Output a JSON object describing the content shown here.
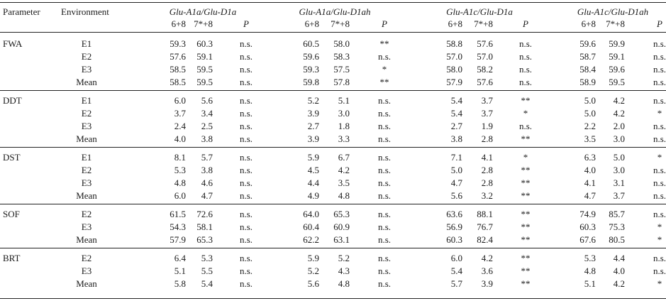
{
  "header": {
    "parameter": "Parameter",
    "environment": "Environment",
    "groups": [
      "Glu-A1a/Glu-D1a",
      "Glu-A1a/Glu-D1ah",
      "Glu-A1c/Glu-D1a",
      "Glu-A1c/Glu-D1ah"
    ],
    "sub": [
      "6+8",
      "7*+8",
      "P"
    ]
  },
  "sections": [
    {
      "param": "FWA",
      "rows": [
        {
          "env": "E1",
          "vals": [
            "59.3",
            "60.3",
            "n.s.",
            "60.5",
            "58.0",
            "**",
            "58.8",
            "57.6",
            "n.s.",
            "59.6",
            "59.9",
            "n.s."
          ]
        },
        {
          "env": "E2",
          "vals": [
            "57.6",
            "59.1",
            "n.s.",
            "59.6",
            "58.3",
            "n.s.",
            "57.0",
            "57.0",
            "n.s.",
            "58.7",
            "59.1",
            "n.s."
          ]
        },
        {
          "env": "E3",
          "vals": [
            "58.5",
            "59.5",
            "n.s.",
            "59.3",
            "57.5",
            "*",
            "58.0",
            "58.2",
            "n.s.",
            "58.4",
            "59.6",
            "n.s."
          ]
        },
        {
          "env": "Mean",
          "vals": [
            "58.5",
            "59.5",
            "n.s.",
            "59.8",
            "57.8",
            "**",
            "57.9",
            "57.6",
            "n.s.",
            "58.9",
            "59.5",
            "n.s."
          ]
        }
      ]
    },
    {
      "param": "DDT",
      "rows": [
        {
          "env": "E1",
          "vals": [
            "6.0",
            "5.6",
            "n.s.",
            "5.2",
            "5.1",
            "n.s.",
            "5.4",
            "3.7",
            "**",
            "5.0",
            "4.2",
            "n.s."
          ]
        },
        {
          "env": "E2",
          "vals": [
            "3.7",
            "3.4",
            "n.s.",
            "3.9",
            "3.0",
            "n.s.",
            "5.4",
            "3.7",
            "*",
            "5.0",
            "4.2",
            "*"
          ]
        },
        {
          "env": "E3",
          "vals": [
            "2.4",
            "2.5",
            "n.s.",
            "2.7",
            "1.8",
            "n.s.",
            "2.7",
            "1.9",
            "n.s.",
            "2.2",
            "2.0",
            "n.s."
          ]
        },
        {
          "env": "Mean",
          "vals": [
            "4.0",
            "3.8",
            "n.s.",
            "3.9",
            "3.3",
            "n.s.",
            "3.8",
            "2.8",
            "**",
            "3.5",
            "3.0",
            "n.s."
          ]
        }
      ]
    },
    {
      "param": "DST",
      "rows": [
        {
          "env": "E1",
          "vals": [
            "8.1",
            "5.7",
            "n.s.",
            "5.9",
            "6.7",
            "n.s.",
            "7.1",
            "4.1",
            "*",
            "6.3",
            "5.0",
            "*"
          ]
        },
        {
          "env": "E2",
          "vals": [
            "5.3",
            "3.8",
            "n.s.",
            "4.5",
            "4.2",
            "n.s.",
            "5.0",
            "2.8",
            "**",
            "4.0",
            "3.0",
            "n.s."
          ]
        },
        {
          "env": "E3",
          "vals": [
            "4.8",
            "4.6",
            "n.s.",
            "4.4",
            "3.5",
            "n.s.",
            "4.7",
            "2.8",
            "**",
            "4.1",
            "3.1",
            "n.s."
          ]
        },
        {
          "env": "Mean",
          "vals": [
            "6.0",
            "4.7",
            "n.s.",
            "4.9",
            "4.8",
            "n.s.",
            "5.6",
            "3.2",
            "**",
            "4.7",
            "3.7",
            "n.s."
          ]
        }
      ]
    },
    {
      "param": "SOF",
      "rows": [
        {
          "env": "E2",
          "vals": [
            "61.5",
            "72.6",
            "n.s.",
            "64.0",
            "65.3",
            "n.s.",
            "63.6",
            "88.1",
            "**",
            "74.9",
            "85.7",
            "n.s."
          ]
        },
        {
          "env": "E3",
          "vals": [
            "54.3",
            "58.1",
            "n.s.",
            "60.4",
            "60.9",
            "n.s.",
            "56.9",
            "76.7",
            "**",
            "60.3",
            "75.3",
            "*"
          ]
        },
        {
          "env": "Mean",
          "vals": [
            "57.9",
            "65.3",
            "n.s.",
            "62.2",
            "63.1",
            "n.s.",
            "60.3",
            "82.4",
            "**",
            "67.6",
            "80.5",
            "*"
          ]
        }
      ]
    },
    {
      "param": "BRT",
      "rows": [
        {
          "env": "E2",
          "vals": [
            "6.4",
            "5.3",
            "n.s.",
            "5.9",
            "5.2",
            "n.s.",
            "6.0",
            "4.2",
            "**",
            "5.3",
            "4.4",
            "n.s."
          ]
        },
        {
          "env": "E3",
          "vals": [
            "5.1",
            "5.5",
            "n.s.",
            "5.2",
            "4.3",
            "n.s.",
            "5.4",
            "3.6",
            "**",
            "4.8",
            "4.0",
            "n.s."
          ]
        },
        {
          "env": "Mean",
          "vals": [
            "5.8",
            "5.4",
            "n.s.",
            "5.6",
            "4.8",
            "n.s.",
            "5.7",
            "3.9",
            "**",
            "5.1",
            "4.2",
            "*"
          ]
        }
      ]
    }
  ]
}
